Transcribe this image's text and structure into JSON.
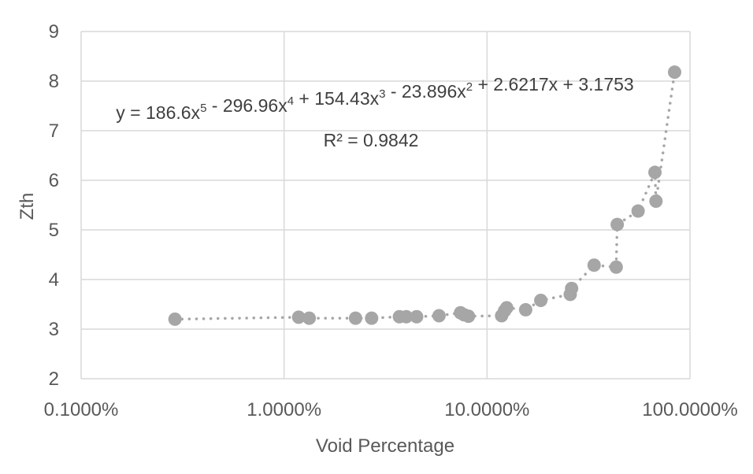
{
  "chart_data": {
    "type": "scatter",
    "title": "",
    "xlabel": "Void Percentage",
    "ylabel": "Zth",
    "x_scale": "log",
    "xlim": [
      0.001,
      1.0
    ],
    "ylim": [
      2,
      9
    ],
    "x_ticks": [
      0.001,
      0.01,
      0.1,
      1.0
    ],
    "x_tick_labels": [
      "0.1000%",
      "1.0000%",
      "10.0000%",
      "100.0000%"
    ],
    "y_ticks": [
      2,
      3,
      4,
      5,
      6,
      7,
      8,
      9
    ],
    "y_tick_labels": [
      "2",
      "3",
      "4",
      "5",
      "6",
      "7",
      "8",
      "9"
    ],
    "grid": true,
    "marker_color": "#a6a6a6",
    "trendline_color": "#a6a6a6",
    "series": [
      {
        "x": [
          0.0029,
          0.0118,
          0.0133,
          0.0225,
          0.027,
          0.037,
          0.04,
          0.045,
          0.058,
          0.074,
          0.077,
          0.081,
          0.118,
          0.122,
          0.125,
          0.155,
          0.184,
          0.257,
          0.261,
          0.337,
          0.433,
          0.438,
          0.555,
          0.672,
          0.68,
          0.84
        ],
        "y": [
          3.2,
          3.24,
          3.22,
          3.22,
          3.22,
          3.25,
          3.25,
          3.25,
          3.27,
          3.33,
          3.29,
          3.26,
          3.27,
          3.37,
          3.43,
          3.39,
          3.58,
          3.7,
          3.82,
          4.29,
          4.25,
          5.11,
          5.38,
          6.16,
          5.58,
          8.18
        ]
      }
    ],
    "trendline": {
      "type": "polynomial",
      "coefficients": [
        186.6,
        -296.96,
        154.43,
        -23.896,
        2.6217,
        3.1753
      ],
      "equation_parts": [
        {
          "text": "y = 186.6x",
          "sup": "5"
        },
        {
          "text": " - 296.96x",
          "sup": "4"
        },
        {
          "text": " + 154.43x",
          "sup": "3"
        },
        {
          "text": " - 23.896x",
          "sup": "2"
        },
        {
          "text": " + 2.6217x + 3.1753",
          "sup": ""
        }
      ],
      "r_squared_label": "R² = 0.9842"
    }
  }
}
